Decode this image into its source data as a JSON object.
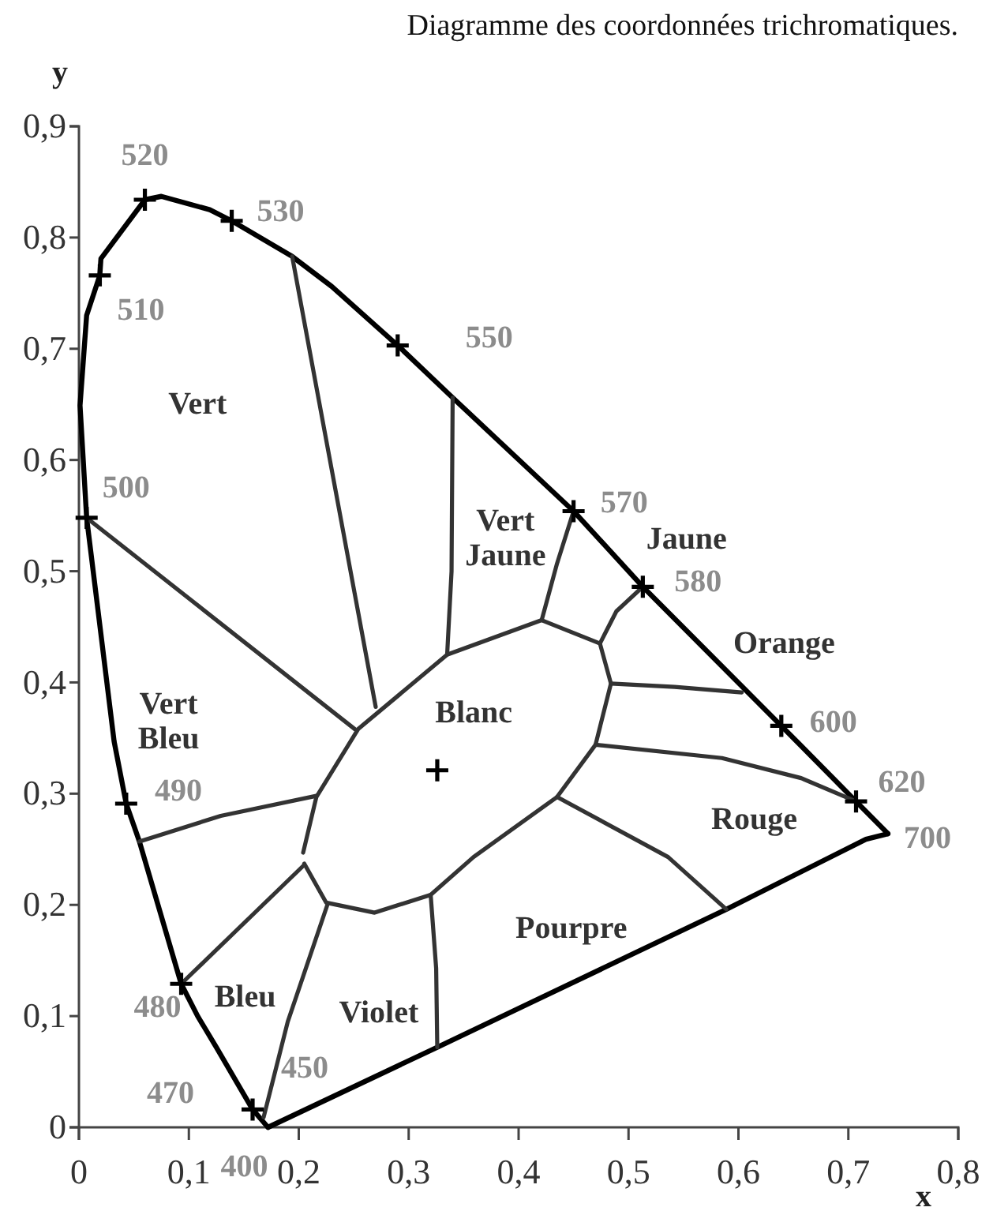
{
  "chart_data": {
    "type": "line",
    "title": "Diagramme des coordonnées trichromatiques.",
    "xlabel": "x",
    "ylabel": "y",
    "xlim": [
      0,
      0.8
    ],
    "ylim": [
      0,
      0.9
    ],
    "xticks": [
      0,
      {
        "value": 0.1,
        "label": "0,1"
      },
      {
        "value": 0.2,
        "label": "0,2"
      },
      {
        "value": 0.3,
        "label": "0,3"
      },
      {
        "value": 0.4,
        "label": "0,4"
      },
      {
        "value": 0.5,
        "label": "0,5"
      },
      {
        "value": 0.6,
        "label": "0,6"
      },
      {
        "value": 0.7,
        "label": "0,7"
      },
      {
        "value": 0.8,
        "label": "0,8"
      }
    ],
    "yticks": [
      0,
      {
        "value": 0.1,
        "label": "0,1"
      },
      {
        "value": 0.2,
        "label": "0,2"
      },
      {
        "value": 0.3,
        "label": "0,3"
      },
      {
        "value": 0.4,
        "label": "0,4"
      },
      {
        "value": 0.5,
        "label": "0,5"
      },
      {
        "value": 0.6,
        "label": "0,6"
      },
      {
        "value": 0.7,
        "label": "0,7"
      },
      {
        "value": 0.8,
        "label": "0,8"
      },
      {
        "value": 0.9,
        "label": "0,9"
      }
    ],
    "series": [
      {
        "type": "line",
        "color": "#000000",
        "x": [
          0.172,
          0.158,
          0.125,
          0.108,
          0.093,
          0.055,
          0.043,
          0.032,
          0.007,
          0.001,
          0.007,
          0.019,
          0.02,
          0.06,
          0.075,
          0.119,
          0.139,
          0.194,
          0.23,
          0.29,
          0.34,
          0.45,
          0.513,
          0.639,
          0.707,
          0.736
        ],
        "values": [
          0.0,
          0.016,
          0.072,
          0.1,
          0.129,
          0.257,
          0.291,
          0.347,
          0.548,
          0.649,
          0.73,
          0.766,
          0.781,
          0.834,
          0.837,
          0.825,
          0.815,
          0.783,
          0.756,
          0.703,
          0.656,
          0.554,
          0.486,
          0.361,
          0.293,
          0.264
        ]
      },
      {
        "type": "line",
        "color": "#000000",
        "x": [
          0.736,
          0.716,
          0.589,
          0.326,
          0.172
        ],
        "values": [
          0.264,
          0.259,
          0.196,
          0.072,
          0.0
        ]
      },
      {
        "type": "line",
        "color": "#333333",
        "x": [
          0.204,
          0.216,
          0.254,
          0.335,
          0.421,
          0.474,
          0.484,
          0.47,
          0.435,
          0.359,
          0.32,
          0.269,
          0.225,
          0.205
        ],
        "values": [
          0.247,
          0.297,
          0.358,
          0.425,
          0.456,
          0.435,
          0.399,
          0.344,
          0.297,
          0.243,
          0.209,
          0.193,
          0.202,
          0.237
        ]
      },
      {
        "type": "line",
        "color": "#333333",
        "x": [
          0.194,
          0.27
        ],
        "values": [
          0.783,
          0.378
        ]
      },
      {
        "type": "line",
        "color": "#333333",
        "x": [
          0.007,
          0.251
        ],
        "values": [
          0.548,
          0.358
        ]
      },
      {
        "type": "line",
        "color": "#333333",
        "x": [
          0.34,
          0.339,
          0.335
        ],
        "values": [
          0.656,
          0.5,
          0.425
        ]
      },
      {
        "type": "line",
        "color": "#333333",
        "x": [
          0.45,
          0.435,
          0.421
        ],
        "values": [
          0.554,
          0.507,
          0.456
        ]
      },
      {
        "type": "line",
        "color": "#333333",
        "x": [
          0.513,
          0.489,
          0.474
        ],
        "values": [
          0.486,
          0.464,
          0.435
        ]
      },
      {
        "type": "line",
        "color": "#333333",
        "x": [
          0.484,
          0.542,
          0.603
        ],
        "values": [
          0.399,
          0.396,
          0.391
        ]
      },
      {
        "type": "line",
        "color": "#333333",
        "x": [
          0.47,
          0.585,
          0.657,
          0.707
        ],
        "values": [
          0.344,
          0.332,
          0.314,
          0.293
        ]
      },
      {
        "type": "line",
        "color": "#333333",
        "x": [
          0.435,
          0.536,
          0.589
        ],
        "values": [
          0.297,
          0.243,
          0.196
        ]
      },
      {
        "type": "line",
        "color": "#333333",
        "x": [
          0.32,
          0.325,
          0.326
        ],
        "values": [
          0.209,
          0.143,
          0.072
        ]
      },
      {
        "type": "line",
        "color": "#333333",
        "x": [
          0.226,
          0.19,
          0.168
        ],
        "values": [
          0.2,
          0.095,
          0.009
        ]
      },
      {
        "type": "line",
        "color": "#333333",
        "x": [
          0.205,
          0.093
        ],
        "values": [
          0.236,
          0.129
        ]
      },
      {
        "type": "line",
        "color": "#333333",
        "x": [
          0.216,
          0.129,
          0.055
        ],
        "values": [
          0.298,
          0.28,
          0.257
        ]
      },
      {
        "type": "scatter",
        "marker": "cross",
        "color": "#000000",
        "x": [
          0.158,
          0.093,
          0.043,
          0.007,
          0.019,
          0.06,
          0.139,
          0.29,
          0.45,
          0.513,
          0.639,
          0.707,
          0.326
        ],
        "values": [
          0.016,
          0.129,
          0.291,
          0.548,
          0.766,
          0.834,
          0.815,
          0.703,
          0.554,
          0.486,
          0.361,
          0.293,
          0.321
        ]
      }
    ],
    "annotations": [
      {
        "text": "520",
        "x": 0.06,
        "y": 0.834
      },
      {
        "text": "530",
        "x": 0.139,
        "y": 0.815
      },
      {
        "text": "510",
        "x": 0.019,
        "y": 0.766
      },
      {
        "text": "550",
        "x": 0.29,
        "y": 0.703
      },
      {
        "text": "500",
        "x": 0.007,
        "y": 0.548
      },
      {
        "text": "570",
        "x": 0.45,
        "y": 0.554
      },
      {
        "text": "580",
        "x": 0.513,
        "y": 0.486
      },
      {
        "text": "490",
        "x": 0.043,
        "y": 0.291
      },
      {
        "text": "600",
        "x": 0.639,
        "y": 0.361
      },
      {
        "text": "620",
        "x": 0.707,
        "y": 0.293
      },
      {
        "text": "700",
        "x": 0.736,
        "y": 0.264
      },
      {
        "text": "480",
        "x": 0.093,
        "y": 0.129
      },
      {
        "text": "470",
        "x": 0.158,
        "y": 0.016
      },
      {
        "text": "450",
        "x": 0.181,
        "y": 0.06
      },
      {
        "text": "400",
        "x": 0.172,
        "y": 0.0
      },
      "Vert",
      "Vert\nJaune",
      "Jaune",
      "Orange",
      "Vert\nBleu",
      "Blanc",
      "Rouge",
      "Pourpre",
      "Bleu",
      "Violet"
    ]
  }
}
